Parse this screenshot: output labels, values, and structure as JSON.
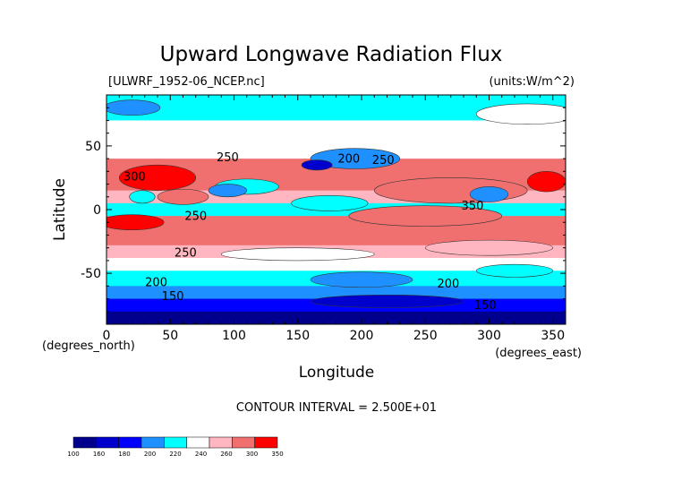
{
  "chart_data": {
    "type": "heatmap",
    "title": "Upward Longwave Radiation Flux",
    "source_label": "[ULWRF_1952-06_NCEP.nc]",
    "units_label": "(units:W/m^2)",
    "xlabel": "Longitude",
    "ylabel": "Latitude",
    "x_unit_label": "(degrees_east)",
    "y_unit_label": "(degrees_north)",
    "xlim": [
      0,
      360
    ],
    "ylim": [
      -90,
      90
    ],
    "x_ticks": [
      0,
      50,
      100,
      150,
      200,
      250,
      300,
      350
    ],
    "y_ticks": [
      -50,
      0,
      50
    ],
    "contour_interval_text": "CONTOUR INTERVAL = 2.500E+01",
    "contour_labels": [
      {
        "text": "250",
        "x": 95,
        "y": 38
      },
      {
        "text": "300",
        "x": 22,
        "y": 23
      },
      {
        "text": "200",
        "x": 190,
        "y": 37
      },
      {
        "text": "250",
        "x": 217,
        "y": 36
      },
      {
        "text": "350",
        "x": 287,
        "y": 0
      },
      {
        "text": "250",
        "x": 70,
        "y": -8
      },
      {
        "text": "250",
        "x": 62,
        "y": -37
      },
      {
        "text": "200",
        "x": 39,
        "y": -60
      },
      {
        "text": "150",
        "x": 52,
        "y": -71
      },
      {
        "text": "200",
        "x": 268,
        "y": -61
      },
      {
        "text": "150",
        "x": 297,
        "y": -78
      }
    ],
    "colorbar": {
      "levels": [
        "100",
        "160",
        "180",
        "200",
        "220",
        "240",
        "260",
        "300",
        "350"
      ],
      "colors": [
        "#00008c",
        "#0000cd",
        "#0000ff",
        "#1e90ff",
        "#00ffff",
        "#ffffff",
        "#ffb6c1",
        "#f07070",
        "#ff0000"
      ]
    },
    "bands": [
      {
        "lat": 90,
        "color": "#00ffff"
      },
      {
        "lat": 80,
        "color": "#00ffff"
      },
      {
        "lat": 70,
        "color": "#ffffff"
      },
      {
        "lat": 55,
        "color": "#ffffff"
      },
      {
        "lat": 40,
        "color": "#f07070"
      },
      {
        "lat": 25,
        "color": "#f07070"
      },
      {
        "lat": 15,
        "color": "#ffb6c1"
      },
      {
        "lat": 5,
        "color": "#00ffff"
      },
      {
        "lat": -5,
        "color": "#f07070"
      },
      {
        "lat": -15,
        "color": "#f07070"
      },
      {
        "lat": -28,
        "color": "#ffb6c1"
      },
      {
        "lat": -38,
        "color": "#ffffff"
      },
      {
        "lat": -48,
        "color": "#00ffff"
      },
      {
        "lat": -60,
        "color": "#1e90ff"
      },
      {
        "lat": -70,
        "color": "#0000ff"
      },
      {
        "lat": -80,
        "color": "#00008c"
      },
      {
        "lat": -90,
        "color": "#00008c"
      }
    ],
    "features": [
      {
        "lon": 40,
        "lat": 25,
        "rx": 30,
        "ry": 10,
        "color": "#ff0000"
      },
      {
        "lon": 345,
        "lat": 22,
        "rx": 15,
        "ry": 8,
        "color": "#ff0000"
      },
      {
        "lon": 60,
        "lat": 10,
        "rx": 20,
        "ry": 6,
        "color": "#f07070"
      },
      {
        "lon": 270,
        "lat": 15,
        "rx": 60,
        "ry": 10,
        "color": "#f07070"
      },
      {
        "lon": 110,
        "lat": 18,
        "rx": 25,
        "ry": 6,
        "color": "#00ffff"
      },
      {
        "lon": 195,
        "lat": 40,
        "rx": 35,
        "ry": 8,
        "color": "#1e90ff"
      },
      {
        "lon": 165,
        "lat": 35,
        "rx": 12,
        "ry": 4,
        "color": "#0000cd"
      },
      {
        "lon": 95,
        "lat": 15,
        "rx": 15,
        "ry": 5,
        "color": "#1e90ff"
      },
      {
        "lon": 28,
        "lat": 10,
        "rx": 10,
        "ry": 5,
        "color": "#00ffff"
      },
      {
        "lon": 300,
        "lat": 12,
        "rx": 15,
        "ry": 6,
        "color": "#1e90ff"
      },
      {
        "lon": 175,
        "lat": 5,
        "rx": 30,
        "ry": 6,
        "color": "#00ffff"
      },
      {
        "lon": 20,
        "lat": 80,
        "rx": 22,
        "ry": 6,
        "color": "#1e90ff"
      },
      {
        "lon": 330,
        "lat": 75,
        "rx": 40,
        "ry": 8,
        "color": "#ffffff"
      },
      {
        "lon": 20,
        "lat": -10,
        "rx": 25,
        "ry": 6,
        "color": "#ff0000"
      },
      {
        "lon": 250,
        "lat": -5,
        "rx": 60,
        "ry": 8,
        "color": "#f07070"
      },
      {
        "lon": 300,
        "lat": -30,
        "rx": 50,
        "ry": 6,
        "color": "#ffb6c1"
      },
      {
        "lon": 150,
        "lat": -35,
        "rx": 60,
        "ry": 5,
        "color": "#ffffff"
      },
      {
        "lon": 200,
        "lat": -55,
        "rx": 40,
        "ry": 6,
        "color": "#1e90ff"
      },
      {
        "lon": 320,
        "lat": -48,
        "rx": 30,
        "ry": 5,
        "color": "#00ffff"
      },
      {
        "lon": 220,
        "lat": -72,
        "rx": 60,
        "ry": 5,
        "color": "#0000cd"
      }
    ]
  }
}
